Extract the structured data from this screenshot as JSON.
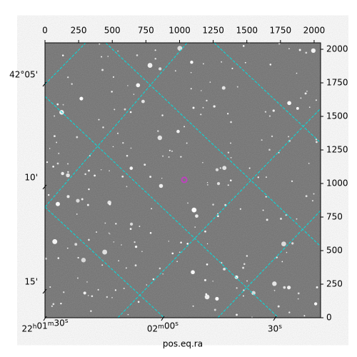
{
  "chart_data": {
    "type": "image",
    "xlabel": "pos.eq.ra",
    "xlim": [
      0,
      2048
    ],
    "ylim": [
      0,
      2048
    ],
    "xticks": [
      0,
      250,
      500,
      750,
      1000,
      1250,
      1500,
      1750,
      2000
    ],
    "yticks": [
      0,
      250,
      500,
      750,
      1000,
      1250,
      1500,
      1750,
      2000
    ],
    "ra_ticks": [
      {
        "value": 0,
        "label": "22h01m30s"
      },
      {
        "value": 875,
        "label": "02m00s"
      },
      {
        "value": 1708,
        "label": "30s"
      }
    ],
    "dec_ticks": [
      {
        "value": 1745,
        "label": "42°05'"
      },
      {
        "value": 979,
        "label": "10'"
      },
      {
        "value": 202,
        "label": "15'"
      }
    ],
    "marker": {
      "x": 1035,
      "y": 1027,
      "color": "#c040c0"
    },
    "grid_color": "#00e0e0"
  }
}
